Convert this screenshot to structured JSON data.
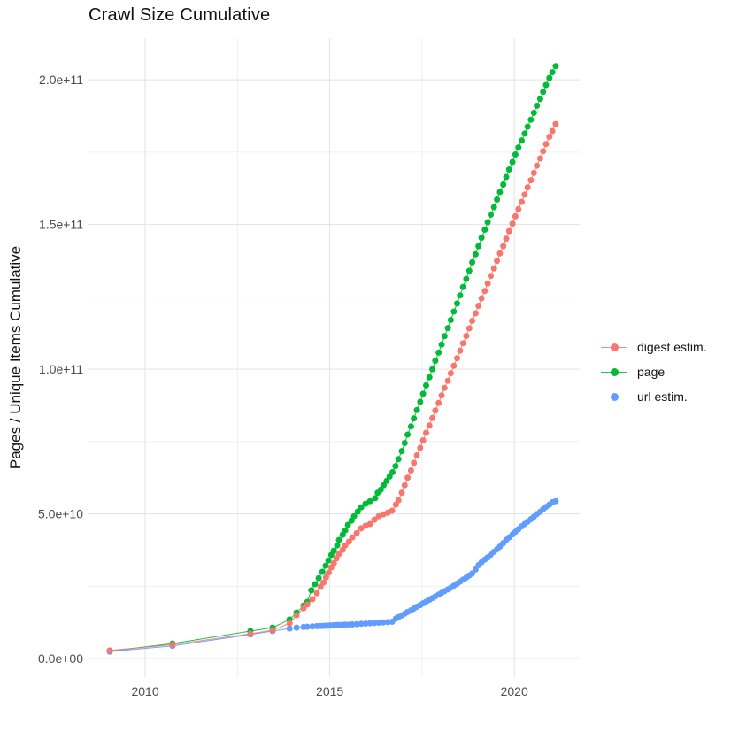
{
  "chart_data": {
    "type": "scatter",
    "title": "Crawl Size Cumulative",
    "xlabel": "",
    "ylabel": "Pages / Unique Items Cumulative",
    "value_unit": "billions (1e9) of pages / unique items",
    "grid": true,
    "legend_position": "right",
    "xlim": [
      2008.44,
      2021.77
    ],
    "ylim": [
      -6.4,
      214.4
    ],
    "x_ticks": [
      {
        "value": 2010,
        "label": "2010"
      },
      {
        "value": 2015,
        "label": "2015"
      },
      {
        "value": 2020,
        "label": "2020"
      }
    ],
    "x_minor_ticks": [
      2012.5,
      2017.5
    ],
    "y_ticks": [
      {
        "value": 0,
        "label": "0.0e+00"
      },
      {
        "value": 50,
        "label": "5.0e+10"
      },
      {
        "value": 100,
        "label": "1.0e+11"
      },
      {
        "value": 150,
        "label": "1.5e+11"
      },
      {
        "value": 200,
        "label": "2.0e+11"
      }
    ],
    "y_minor_ticks": [
      25,
      75,
      125,
      175
    ],
    "legend": [
      {
        "label": "digest estim.",
        "color": "#F8766D"
      },
      {
        "label": "page",
        "color": "#00BA38"
      },
      {
        "label": "url estim.",
        "color": "#619CFF"
      }
    ],
    "series": [
      {
        "name": "page",
        "color": "#00BA38",
        "points": [
          [
            2009.04,
            2.6
          ],
          [
            2010.74,
            5.2
          ],
          [
            2012.85,
            9.5
          ],
          [
            2013.45,
            10.7
          ],
          [
            2013.91,
            13.5
          ],
          [
            2014.1,
            15.9
          ],
          [
            2014.29,
            18.3
          ],
          [
            2014.39,
            19.6
          ],
          [
            2014.5,
            23.6
          ],
          [
            2014.6,
            25.7
          ],
          [
            2014.7,
            27.8
          ],
          [
            2014.8,
            30.0
          ],
          [
            2014.89,
            32.1
          ],
          [
            2014.96,
            33.9
          ],
          [
            2015.04,
            35.8
          ],
          [
            2015.11,
            37.3
          ],
          [
            2015.2,
            39.1
          ],
          [
            2015.25,
            41.0
          ],
          [
            2015.35,
            42.8
          ],
          [
            2015.42,
            44.3
          ],
          [
            2015.49,
            46.2
          ],
          [
            2015.59,
            47.7
          ],
          [
            2015.66,
            49.2
          ],
          [
            2015.76,
            50.8
          ],
          [
            2015.85,
            52.3
          ],
          [
            2015.97,
            53.5
          ],
          [
            2016.09,
            54.4
          ],
          [
            2016.23,
            55.4
          ],
          [
            2016.3,
            57.3
          ],
          [
            2016.38,
            58.3
          ],
          [
            2016.46,
            59.9
          ],
          [
            2016.54,
            61.4
          ],
          [
            2016.62,
            62.9
          ],
          [
            2016.7,
            64.4
          ],
          [
            2016.78,
            66.5
          ],
          [
            2016.86,
            68.9
          ],
          [
            2016.95,
            71.7
          ],
          [
            2017.03,
            74.5
          ],
          [
            2017.11,
            77.4
          ],
          [
            2017.2,
            80.2
          ],
          [
            2017.28,
            83.0
          ],
          [
            2017.36,
            85.9
          ],
          [
            2017.45,
            88.7
          ],
          [
            2017.53,
            91.5
          ],
          [
            2017.61,
            94.4
          ],
          [
            2017.7,
            97.2
          ],
          [
            2017.78,
            100.0
          ],
          [
            2017.86,
            102.9
          ],
          [
            2017.95,
            105.7
          ],
          [
            2018.03,
            108.5
          ],
          [
            2018.11,
            111.4
          ],
          [
            2018.2,
            114.2
          ],
          [
            2018.28,
            117.0
          ],
          [
            2018.36,
            119.9
          ],
          [
            2018.45,
            122.7
          ],
          [
            2018.53,
            125.5
          ],
          [
            2018.61,
            128.4
          ],
          [
            2018.7,
            131.2
          ],
          [
            2018.78,
            134.0
          ],
          [
            2018.86,
            136.9
          ],
          [
            2018.95,
            139.7
          ],
          [
            2019.03,
            142.5
          ],
          [
            2019.11,
            145.4
          ],
          [
            2019.2,
            148.2
          ],
          [
            2019.28,
            150.8
          ],
          [
            2019.36,
            153.4
          ],
          [
            2019.45,
            156.0
          ],
          [
            2019.53,
            158.6
          ],
          [
            2019.61,
            161.2
          ],
          [
            2019.7,
            163.8
          ],
          [
            2019.78,
            166.4
          ],
          [
            2019.86,
            169.0
          ],
          [
            2019.95,
            171.6
          ],
          [
            2020.03,
            174.2
          ],
          [
            2020.11,
            176.6
          ],
          [
            2020.2,
            179.0
          ],
          [
            2020.28,
            181.4
          ],
          [
            2020.36,
            183.8
          ],
          [
            2020.45,
            186.2
          ],
          [
            2020.53,
            188.6
          ],
          [
            2020.61,
            191.0
          ],
          [
            2020.7,
            193.4
          ],
          [
            2020.78,
            195.8
          ],
          [
            2020.86,
            198.2
          ],
          [
            2020.95,
            200.6
          ],
          [
            2021.03,
            202.6
          ],
          [
            2021.12,
            204.7
          ]
        ]
      },
      {
        "name": "url estim.",
        "color": "#619CFF",
        "points": [
          [
            2009.04,
            2.4
          ],
          [
            2010.74,
            4.4
          ],
          [
            2012.85,
            8.3
          ],
          [
            2013.45,
            9.5
          ],
          [
            2013.91,
            10.4
          ],
          [
            2014.1,
            10.7
          ],
          [
            2014.29,
            10.9
          ],
          [
            2014.39,
            11.0
          ],
          [
            2014.53,
            11.1
          ],
          [
            2014.65,
            11.2
          ],
          [
            2014.75,
            11.25
          ],
          [
            2014.83,
            11.3
          ],
          [
            2014.9,
            11.35
          ],
          [
            2014.97,
            11.4
          ],
          [
            2015.04,
            11.45
          ],
          [
            2015.11,
            11.5
          ],
          [
            2015.18,
            11.55
          ],
          [
            2015.25,
            11.6
          ],
          [
            2015.35,
            11.65
          ],
          [
            2015.42,
            11.7
          ],
          [
            2015.52,
            11.75
          ],
          [
            2015.61,
            11.8
          ],
          [
            2015.73,
            11.9
          ],
          [
            2015.85,
            12.0
          ],
          [
            2015.97,
            12.1
          ],
          [
            2016.09,
            12.2
          ],
          [
            2016.21,
            12.3
          ],
          [
            2016.33,
            12.4
          ],
          [
            2016.45,
            12.5
          ],
          [
            2016.57,
            12.6
          ],
          [
            2016.69,
            12.7
          ],
          [
            2016.79,
            13.8
          ],
          [
            2016.86,
            14.3
          ],
          [
            2016.95,
            14.9
          ],
          [
            2017.03,
            15.5
          ],
          [
            2017.11,
            16.1
          ],
          [
            2017.2,
            16.7
          ],
          [
            2017.28,
            17.3
          ],
          [
            2017.36,
            17.9
          ],
          [
            2017.45,
            18.5
          ],
          [
            2017.53,
            19.1
          ],
          [
            2017.61,
            19.7
          ],
          [
            2017.7,
            20.3
          ],
          [
            2017.78,
            20.9
          ],
          [
            2017.86,
            21.5
          ],
          [
            2017.95,
            22.1
          ],
          [
            2018.03,
            22.7
          ],
          [
            2018.11,
            23.3
          ],
          [
            2018.2,
            23.9
          ],
          [
            2018.28,
            24.5
          ],
          [
            2018.36,
            25.2
          ],
          [
            2018.45,
            25.9
          ],
          [
            2018.53,
            26.6
          ],
          [
            2018.61,
            27.3
          ],
          [
            2018.7,
            28.0
          ],
          [
            2018.78,
            28.7
          ],
          [
            2018.86,
            29.4
          ],
          [
            2018.95,
            30.8
          ],
          [
            2019.03,
            32.3
          ],
          [
            2019.11,
            33.3
          ],
          [
            2019.2,
            34.2
          ],
          [
            2019.28,
            35.0
          ],
          [
            2019.36,
            35.9
          ],
          [
            2019.45,
            36.9
          ],
          [
            2019.53,
            37.8
          ],
          [
            2019.61,
            38.7
          ],
          [
            2019.7,
            39.9
          ],
          [
            2019.78,
            41.0
          ],
          [
            2019.86,
            41.9
          ],
          [
            2019.95,
            42.9
          ],
          [
            2020.03,
            43.8
          ],
          [
            2020.11,
            44.7
          ],
          [
            2020.2,
            45.7
          ],
          [
            2020.28,
            46.5
          ],
          [
            2020.36,
            47.3
          ],
          [
            2020.45,
            48.2
          ],
          [
            2020.53,
            49.0
          ],
          [
            2020.61,
            49.9
          ],
          [
            2020.7,
            50.7
          ],
          [
            2020.78,
            51.6
          ],
          [
            2020.86,
            52.4
          ],
          [
            2020.95,
            53.2
          ],
          [
            2021.03,
            54.0
          ],
          [
            2021.12,
            54.4
          ]
        ]
      },
      {
        "name": "digest estim.",
        "color": "#F8766D",
        "points": [
          [
            2009.04,
            2.8
          ],
          [
            2010.74,
            4.8
          ],
          [
            2012.85,
            8.6
          ],
          [
            2013.45,
            9.8
          ],
          [
            2013.91,
            12.2
          ],
          [
            2014.1,
            15.0
          ],
          [
            2014.29,
            17.4
          ],
          [
            2014.39,
            18.7
          ],
          [
            2014.53,
            20.5
          ],
          [
            2014.65,
            22.6
          ],
          [
            2014.75,
            24.8
          ],
          [
            2014.83,
            26.3
          ],
          [
            2014.9,
            28.1
          ],
          [
            2014.97,
            29.7
          ],
          [
            2015.04,
            31.5
          ],
          [
            2015.11,
            33.0
          ],
          [
            2015.18,
            34.6
          ],
          [
            2015.25,
            36.1
          ],
          [
            2015.35,
            37.6
          ],
          [
            2015.42,
            39.1
          ],
          [
            2015.52,
            40.4
          ],
          [
            2015.61,
            41.9
          ],
          [
            2015.73,
            43.4
          ],
          [
            2015.85,
            45.0
          ],
          [
            2015.97,
            45.9
          ],
          [
            2016.09,
            46.5
          ],
          [
            2016.21,
            48.0
          ],
          [
            2016.33,
            49.2
          ],
          [
            2016.45,
            49.8
          ],
          [
            2016.57,
            50.4
          ],
          [
            2016.69,
            51.1
          ],
          [
            2016.79,
            53.2
          ],
          [
            2016.86,
            54.7
          ],
          [
            2016.95,
            57.3
          ],
          [
            2017.03,
            59.9
          ],
          [
            2017.11,
            62.5
          ],
          [
            2017.2,
            65.0
          ],
          [
            2017.28,
            67.6
          ],
          [
            2017.36,
            70.2
          ],
          [
            2017.45,
            72.8
          ],
          [
            2017.53,
            75.4
          ],
          [
            2017.61,
            78.0
          ],
          [
            2017.7,
            80.5
          ],
          [
            2017.78,
            83.1
          ],
          [
            2017.86,
            85.7
          ],
          [
            2017.95,
            88.3
          ],
          [
            2018.03,
            90.9
          ],
          [
            2018.11,
            93.5
          ],
          [
            2018.2,
            96.0
          ],
          [
            2018.28,
            98.6
          ],
          [
            2018.36,
            101.2
          ],
          [
            2018.45,
            103.8
          ],
          [
            2018.53,
            106.4
          ],
          [
            2018.61,
            109.0
          ],
          [
            2018.7,
            111.5
          ],
          [
            2018.78,
            114.1
          ],
          [
            2018.86,
            116.7
          ],
          [
            2018.95,
            119.3
          ],
          [
            2019.03,
            121.9
          ],
          [
            2019.11,
            124.5
          ],
          [
            2019.2,
            127.0
          ],
          [
            2019.28,
            129.6
          ],
          [
            2019.36,
            132.2
          ],
          [
            2019.45,
            134.8
          ],
          [
            2019.53,
            137.4
          ],
          [
            2019.61,
            140.0
          ],
          [
            2019.7,
            142.5
          ],
          [
            2019.78,
            145.1
          ],
          [
            2019.86,
            147.7
          ],
          [
            2019.95,
            150.3
          ],
          [
            2020.03,
            152.8
          ],
          [
            2020.11,
            155.3
          ],
          [
            2020.2,
            157.8
          ],
          [
            2020.28,
            160.3
          ],
          [
            2020.36,
            162.8
          ],
          [
            2020.45,
            165.3
          ],
          [
            2020.53,
            167.8
          ],
          [
            2020.61,
            170.3
          ],
          [
            2020.7,
            172.8
          ],
          [
            2020.78,
            175.3
          ],
          [
            2020.86,
            177.8
          ],
          [
            2020.95,
            180.3
          ],
          [
            2021.03,
            182.3
          ],
          [
            2021.12,
            184.7
          ]
        ]
      }
    ]
  }
}
